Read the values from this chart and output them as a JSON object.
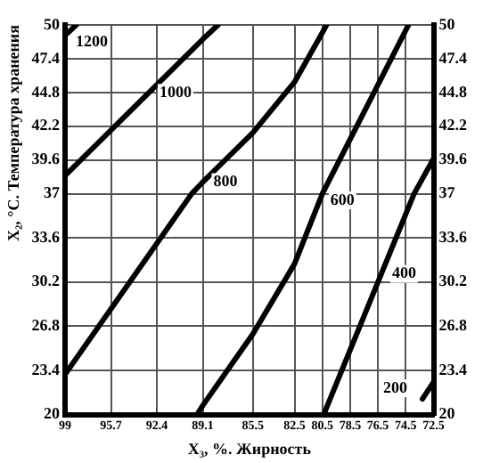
{
  "chart_data": {
    "type": "line",
    "xlabel": "X₃, %. Жирность",
    "ylabel": "X₂, °C. Температура хранения",
    "xlim": [
      99,
      72.5
    ],
    "xticks": [
      99,
      95.7,
      92.4,
      89.1,
      85.5,
      82.5,
      80.5,
      78.5,
      76.5,
      74.5,
      72.5
    ],
    "ylim": [
      20,
      50
    ],
    "yticks": [
      20,
      23.4,
      26.8,
      30.2,
      33.6,
      37,
      39.6,
      42.2,
      44.8,
      47.4,
      50
    ],
    "y2lim": [
      20,
      50
    ],
    "y2ticks": [
      20,
      23.4,
      26.8,
      30.2,
      33.6,
      37,
      39.6,
      42.2,
      44.8,
      47.4,
      50
    ],
    "grid": true,
    "legend": false,
    "line_style": "solid",
    "marker": "none",
    "series": [
      {
        "name": "1200",
        "color": "#000000",
        "x": [
          99,
          98.2
        ],
        "values": [
          49.2,
          50
        ]
      },
      {
        "name": "1000",
        "color": "#000000",
        "x": [
          99,
          89.1,
          88
        ],
        "values": [
          38.4,
          48.9,
          50
        ]
      },
      {
        "name": "800",
        "color": "#000000",
        "x": [
          99,
          89.9,
          89.1,
          85.5,
          82.5,
          80.5,
          80.2
        ],
        "values": [
          23.1,
          37,
          37.9,
          41.7,
          45.6,
          49.4,
          50
        ]
      },
      {
        "name": "600",
        "color": "#000000",
        "x": [
          89.5,
          89.1,
          85.5,
          82.5,
          80.5,
          74.3
        ],
        "values": [
          20,
          20.7,
          26.2,
          31.6,
          37,
          50
        ]
      },
      {
        "name": "400",
        "color": "#000000",
        "x": [
          80.4,
          73.9,
          72.5
        ],
        "values": [
          20,
          37,
          39.7
        ]
      },
      {
        "name": "200",
        "color": "#000000",
        "x": [
          73.3,
          72.5
        ],
        "values": [
          21.2,
          22.5
        ]
      }
    ]
  }
}
